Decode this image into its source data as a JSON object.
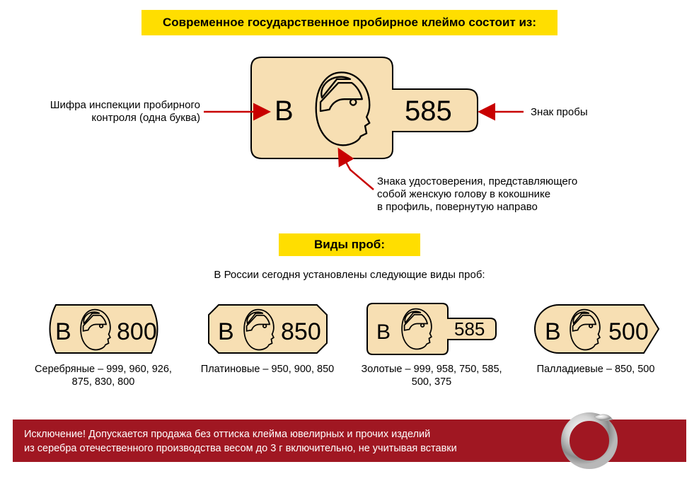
{
  "colors": {
    "background": "#ffffff",
    "tan": "#f7dfb3",
    "yellow": "#ffde00",
    "arrow_red": "#c80000",
    "exception_bg": "#a01722",
    "black": "#000000",
    "white": "#ffffff"
  },
  "title1": "Современное государственное пробирное клеймо состоит из:",
  "main_stamp": {
    "letter": "В",
    "number": "585",
    "letter_fontsize": 40,
    "number_fontsize": 40
  },
  "annotations": {
    "left": "Шифра инспекции пробирного\nконтроля (одна буква)",
    "right": "Знак пробы",
    "bottom": "Знака удостоверения, представляющего\nсобой женскую голову в кокошнике\nв профиль, повернутую направо"
  },
  "title2": "Виды проб:",
  "subtitle": "В России сегодня установлены следующие виды проб:",
  "stamps": [
    {
      "shape": "barrel",
      "letter": "В",
      "number": "800",
      "label": "Серебряные – 999, 960, 926,\n875, 830, 800"
    },
    {
      "shape": "octagon",
      "letter": "В",
      "number": "850",
      "label": "Платиновые – 950, 900, 850"
    },
    {
      "shape": "spatula",
      "letter": "В",
      "number": "585",
      "label": "Золотые – 999, 958, 750, 585, 500, 375"
    },
    {
      "shape": "bullet",
      "letter": "В",
      "number": "500",
      "label": "Палладиевые – 850, 500"
    }
  ],
  "stamp_style": {
    "letter_fontsize": 30,
    "number_fontsize": 30,
    "label_fontsize": 14.5
  },
  "exception": "Исключение! Допускается продажа без оттиска клейма ювелирных и прочих изделий\nиз серебра отечественного производства весом до 3 г включительно, не учитывая вставки"
}
